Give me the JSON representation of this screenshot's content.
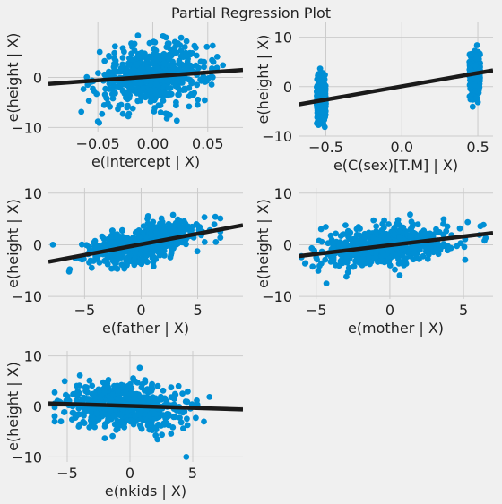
{
  "figure": {
    "title": "Partial Regression Plot",
    "point_color": "#008fd5",
    "line_color": "#1a1a1a",
    "background": "#f0f0f0",
    "grid_color": "#cbcbcb"
  },
  "chart_data": [
    {
      "type": "scatter",
      "xlabel": "e(Intercept | X)",
      "ylabel": "e(height | X)",
      "xlim": [
        -0.095,
        0.082
      ],
      "ylim": [
        -11,
        11
      ],
      "xticks": [
        -0.05,
        0.0,
        0.05
      ],
      "xticklabels": [
        "−0.05",
        "0.00",
        "0.05"
      ],
      "yticks": [
        -10,
        0
      ],
      "yticklabels": [
        "−10",
        "0"
      ],
      "grid": true,
      "points": {
        "n": 600,
        "x_center": 0.0,
        "x_spread": 0.025,
        "x_min": -0.088,
        "x_max": 0.08,
        "slope": 18,
        "intercept": 0.4,
        "resid_sd": 3.0,
        "y_min": -9.5,
        "y_max": 9.8
      },
      "fit_line": {
        "x": [
          -0.095,
          0.082
        ],
        "y": [
          -1.3,
          1.5
        ]
      }
    },
    {
      "type": "scatter",
      "xlabel": "e(C(sex)[T.M] | X)",
      "ylabel": "e(height | X)",
      "xlim": [
        -0.68,
        0.6
      ],
      "ylim": [
        -10,
        13
      ],
      "xticks": [
        -0.5,
        0.0,
        0.5
      ],
      "xticklabels": [
        "−0.5",
        "0.0",
        "0.5"
      ],
      "yticks": [
        -10,
        0,
        10
      ],
      "yticklabels": [
        "−10",
        "0",
        "10"
      ],
      "grid": true,
      "points": {
        "clusters": [
          {
            "n": 300,
            "x_center": -0.53,
            "x_spread": 0.03,
            "y_center": -2.5,
            "y_sd": 2.2
          },
          {
            "n": 300,
            "x_center": 0.48,
            "x_spread": 0.035,
            "y_center": 2.3,
            "y_sd": 2.2
          }
        ],
        "y_min": -9.5,
        "y_max": 11.5
      },
      "fit_line": {
        "x": [
          -0.68,
          0.6
        ],
        "y": [
          -3.6,
          3.3
        ]
      }
    },
    {
      "type": "scatter",
      "xlabel": "e(father | X)",
      "ylabel": "e(height | X)",
      "xlim": [
        -8.2,
        9.0
      ],
      "ylim": [
        -10.5,
        11
      ],
      "xticks": [
        -5,
        0,
        5
      ],
      "xticklabels": [
        "−5",
        "0",
        "5"
      ],
      "yticks": [
        -10,
        0,
        10
      ],
      "yticklabels": [
        "−10",
        "0",
        "10"
      ],
      "grid": true,
      "points": {
        "n": 600,
        "x_center": 0.0,
        "x_spread": 2.5,
        "x_min": -7.8,
        "x_max": 7.0,
        "slope": 0.41,
        "intercept": 0.2,
        "resid_sd": 1.7,
        "y_min": -9.5,
        "y_max": 9.5
      },
      "fit_line": {
        "x": [
          -8.2,
          9.0
        ],
        "y": [
          -3.3,
          3.8
        ]
      }
    },
    {
      "type": "scatter",
      "xlabel": "e(mother | X)",
      "ylabel": "e(height | X)",
      "xlim": [
        -6.2,
        7.0
      ],
      "ylim": [
        -10.5,
        11
      ],
      "xticks": [
        -5,
        0,
        5
      ],
      "xticklabels": [
        "−5",
        "0",
        "5"
      ],
      "yticks": [
        -10,
        0,
        10
      ],
      "yticklabels": [
        "−10",
        "0",
        "10"
      ],
      "grid": true,
      "points": {
        "n": 600,
        "x_center": -0.3,
        "x_spread": 2.2,
        "x_min": -6.0,
        "x_max": 6.5,
        "slope": 0.34,
        "intercept": -0.1,
        "resid_sd": 1.9,
        "y_min": -9.0,
        "y_max": 9.5
      },
      "fit_line": {
        "x": [
          -6.2,
          7.0
        ],
        "y": [
          -2.2,
          2.3
        ]
      }
    },
    {
      "type": "scatter",
      "xlabel": "e(nkids | X)",
      "ylabel": "e(height | X)",
      "xlim": [
        -6.5,
        9.0
      ],
      "ylim": [
        -11,
        11
      ],
      "xticks": [
        -5,
        0,
        5
      ],
      "xticklabels": [
        "−5",
        "0",
        "5"
      ],
      "yticks": [
        -10,
        0,
        10
      ],
      "yticklabels": [
        "−10",
        "0",
        "10"
      ],
      "grid": true,
      "points": {
        "n": 600,
        "x_center": -0.5,
        "x_spread": 2.6,
        "x_min": -6.0,
        "x_max": 8.2,
        "slope": -0.08,
        "intercept": 0.0,
        "resid_sd": 2.3,
        "y_min": -10.0,
        "y_max": 9.2
      },
      "fit_line": {
        "x": [
          -6.5,
          9.0
        ],
        "y": [
          0.6,
          -0.6
        ]
      }
    }
  ]
}
